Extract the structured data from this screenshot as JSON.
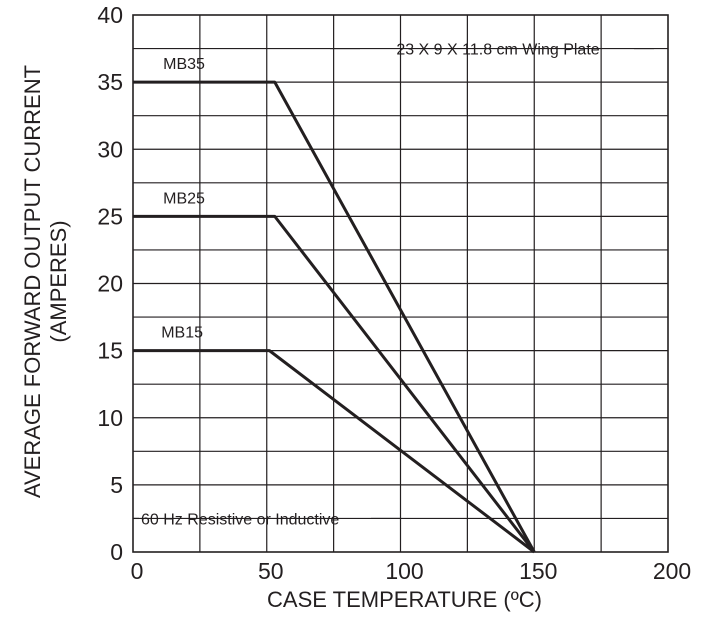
{
  "chart_data": {
    "type": "line",
    "xlabel": "CASE TEMPERATURE (ºC)",
    "ylabel": "AVERAGE FORWARD OUTPUT CURRENT",
    "ylabel_line2": "(AMPERES)",
    "xlim": [
      0,
      200
    ],
    "ylim": [
      0,
      40
    ],
    "x_ticks": [
      0,
      50,
      100,
      150,
      200
    ],
    "y_ticks": [
      0,
      5,
      10,
      15,
      20,
      25,
      30,
      35,
      40
    ],
    "grid": true,
    "legend": "none",
    "series": [
      {
        "name": "MB35",
        "x": [
          0,
          53,
          150
        ],
        "y": [
          35,
          35,
          0
        ]
      },
      {
        "name": "MB25",
        "x": [
          0,
          53,
          150
        ],
        "y": [
          25,
          25,
          0
        ]
      },
      {
        "name": "MB15",
        "x": [
          0,
          51,
          150
        ],
        "y": [
          15,
          15,
          0
        ]
      }
    ],
    "annotations": [
      {
        "text": "23 X 9 X 11.8 cm Wing Plate",
        "position": "top-right"
      },
      {
        "text": "60 Hz Resistive or Inductive",
        "position": "bottom-left"
      }
    ]
  }
}
